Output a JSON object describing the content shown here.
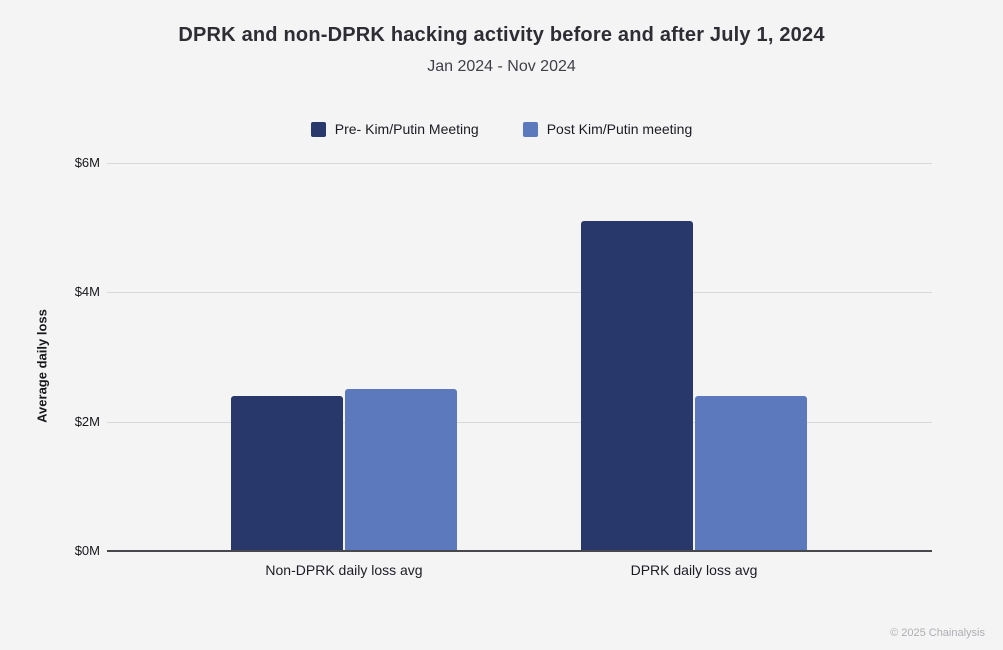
{
  "page": {
    "background": "#f5f4f5",
    "footer_credit": "© 2025 Chainalysis"
  },
  "chart_data": {
    "type": "bar",
    "title": "DPRK and non-DPRK hacking activity before and after July 1, 2024",
    "subtitle": "Jan 2024 - Nov 2024",
    "xlabel": "",
    "ylabel": "Average daily loss",
    "unit": "millions of USD",
    "ylim": [
      0,
      6
    ],
    "y_tick_values": [
      0,
      2,
      4,
      6
    ],
    "y_tick_labels": [
      "$0M",
      "$2M",
      "$4M",
      "$6M"
    ],
    "grid": true,
    "legend_position": "top-center",
    "categories": [
      "Non-DPRK daily loss avg",
      "DPRK daily loss avg"
    ],
    "series": [
      {
        "name": "Pre- Kim/Putin Meeting",
        "color": "#29386b",
        "values": [
          2.4,
          5.1
        ]
      },
      {
        "name": "Post Kim/Putin meeting",
        "color": "#5d79bd",
        "values": [
          2.5,
          2.4
        ]
      }
    ],
    "colors": {
      "background": "#f5f4f5",
      "gridline": "#d8d8da",
      "axis_line": "#48474b",
      "title_text": "#2e2d33",
      "tick_text": "#17171c",
      "footer_text": "#aeadb2"
    }
  }
}
